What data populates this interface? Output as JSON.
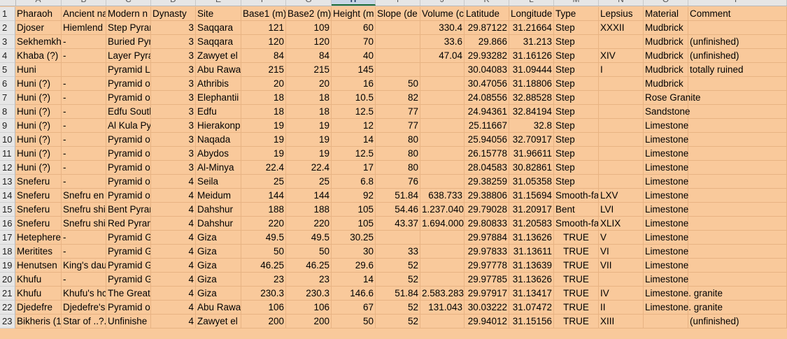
{
  "columns": [
    "A",
    "B",
    "C",
    "D",
    "E",
    "F",
    "G",
    "H",
    "I",
    "J",
    "K",
    "L",
    "M",
    "N",
    "O",
    "P",
    "Q"
  ],
  "selected_column": "H",
  "rows": [
    {
      "n": "1",
      "c": [
        "Pharaoh",
        "Ancient na",
        "Modern n",
        "Dynasty",
        "Site",
        "Base1 (m)",
        "Base2 (m)",
        "Height (m",
        "Slope (de",
        "Volume (c",
        "Latitude",
        "Longitude",
        "Type",
        "Lepsius",
        "Material",
        "Comment",
        ""
      ]
    },
    {
      "n": "2",
      "c": [
        "Djoser",
        "Hiemlend",
        "Step Pyran",
        "3",
        "Saqqara",
        "121",
        "109",
        "60",
        "",
        "330.4",
        "29.87122",
        "31.21664",
        "Step",
        "XXXII",
        "Mudbrick",
        "",
        ""
      ]
    },
    {
      "n": "3",
      "c": [
        "Sekhemkh",
        "-",
        "Buried Pyr",
        "3",
        "Saqqara",
        "120",
        "120",
        "70",
        "",
        "33.6",
        "29.866",
        "31.213",
        "Step",
        "",
        "Mudbrick",
        "(unfinished)",
        ""
      ]
    },
    {
      "n": "4",
      "c": [
        "Khaba (?)",
        "-",
        "Layer Pyra",
        "3",
        "Zawyet el",
        "84",
        "84",
        "40",
        "",
        "47.04",
        "29.93282",
        "31.16126",
        "Step",
        "XIV",
        "Mudbrick",
        "(unfinished)",
        ""
      ]
    },
    {
      "n": "5",
      "c": [
        "Huni",
        "",
        "Pyramid L",
        "3",
        "Abu Rawa",
        "215",
        "215",
        "145",
        "",
        "",
        "30.04083",
        "31.09444",
        "Step",
        "I",
        "Mudbrick",
        "totally ruined",
        ""
      ]
    },
    {
      "n": "6",
      "c": [
        "Huni (?)",
        "-",
        "Pyramid o",
        "3",
        "Athribis",
        "20",
        "20",
        "16",
        "50",
        "",
        "30.47056",
        "31.18806",
        "Step",
        "",
        "Mudbrick",
        "",
        ""
      ]
    },
    {
      "n": "7",
      "c": [
        "Huni (?)",
        "-",
        "Pyramid o",
        "3",
        "Elephantii",
        "18",
        "18",
        "10.5",
        "82",
        "",
        "24.08556",
        "32.88528",
        "Step",
        "",
        "Rose Granite",
        "",
        ""
      ]
    },
    {
      "n": "8",
      "c": [
        "Huni (?)",
        "-",
        "Edfu Soutl",
        "3",
        "Edfu",
        "18",
        "18",
        "12.5",
        "77",
        "",
        "24.94361",
        "32.84194",
        "Step",
        "",
        "Sandstone",
        "",
        ""
      ]
    },
    {
      "n": "9",
      "c": [
        "Huni (?)",
        "-",
        "Al Kula Py",
        "3",
        "Hierakonp",
        "19",
        "19",
        "12",
        "77",
        "",
        "25.11667",
        "32.8",
        "Step",
        "",
        "Limestone",
        "",
        ""
      ]
    },
    {
      "n": "10",
      "c": [
        "Huni (?)",
        "-",
        "Pyramid o",
        "3",
        "Naqada",
        "19",
        "19",
        "14",
        "80",
        "",
        "25.94056",
        "32.70917",
        "Step",
        "",
        "Limestone",
        "",
        ""
      ]
    },
    {
      "n": "11",
      "c": [
        "Huni (?)",
        "-",
        "Pyramid o",
        "3",
        "Abydos",
        "19",
        "19",
        "12.5",
        "80",
        "",
        "26.15778",
        "31.96611",
        "Step",
        "",
        "Limestone",
        "",
        ""
      ]
    },
    {
      "n": "12",
      "c": [
        "Huni (?)",
        "-",
        "Pyramid o",
        "3",
        "Al-Minya",
        "22.4",
        "22.4",
        "17",
        "80",
        "",
        "28.04583",
        "30.82861",
        "Step",
        "",
        "Limestone",
        "",
        ""
      ]
    },
    {
      "n": "13",
      "c": [
        "Sneferu",
        "-",
        "Pyramid o",
        "4",
        "Seila",
        "25",
        "25",
        "6.8",
        "76",
        "",
        "29.38259",
        "31.05358",
        "Step",
        "",
        "Limestone",
        "",
        ""
      ]
    },
    {
      "n": "14",
      "c": [
        "Sneferu",
        "Snefru en",
        "Pyramid o",
        "4",
        "Meidum",
        "144",
        "144",
        "92",
        "51.84",
        "638.733",
        "29.38806",
        "31.15694",
        "Smooth-fa",
        "LXV",
        "Limestone",
        "",
        ""
      ]
    },
    {
      "n": "15",
      "c": [
        "Sneferu",
        "Snefru shi",
        "Bent Pyrar",
        "4",
        "Dahshur",
        "188",
        "188",
        "105",
        "54.46",
        "1.237.040",
        "29.79028",
        "31.20917",
        "Bent",
        "LVI",
        "Limestone",
        "",
        ""
      ]
    },
    {
      "n": "16",
      "c": [
        "Sneferu",
        "Snefru shi",
        "Red Pyran",
        "4",
        "Dahshur",
        "220",
        "220",
        "105",
        "43.37",
        "1.694.000",
        "29.80833",
        "31.20583",
        "Smooth-fa",
        "XLIX",
        "Limestone",
        "",
        ""
      ]
    },
    {
      "n": "17",
      "c": [
        "Hetephere",
        "-",
        "Pyramid G",
        "4",
        "Giza",
        "49.5",
        "49.5",
        "30.25",
        "",
        "",
        "29.97884",
        "31.13626",
        "TRUE",
        "V",
        "Limestone",
        "",
        ""
      ]
    },
    {
      "n": "18",
      "c": [
        "Meritites",
        "-",
        "Pyramid G",
        "4",
        "Giza",
        "50",
        "50",
        "30",
        "33",
        "",
        "29.97833",
        "31.13611",
        "TRUE",
        "VI",
        "Limestone",
        "",
        ""
      ]
    },
    {
      "n": "19",
      "c": [
        "Henutsen",
        "King's dau",
        "Pyramid G",
        "4",
        "Giza",
        "46.25",
        "46.25",
        "29.6",
        "52",
        "",
        "29.97778",
        "31.13639",
        "TRUE",
        "VII",
        "Limestone",
        "",
        ""
      ]
    },
    {
      "n": "20",
      "c": [
        "Khufu",
        "-",
        "Pyramid G",
        "4",
        "Giza",
        "23",
        "23",
        "14",
        "52",
        "",
        "29.97785",
        "31.13626",
        "TRUE",
        "",
        "Limestone",
        "",
        ""
      ]
    },
    {
      "n": "21",
      "c": [
        "Khufu",
        "Khufu's hc",
        "The Great",
        "4",
        "Giza",
        "230.3",
        "230.3",
        "146.6",
        "51.84",
        "2.583.283",
        "29.97917",
        "31.13417",
        "TRUE",
        "IV",
        "Limestone. granite",
        "",
        ""
      ]
    },
    {
      "n": "22",
      "c": [
        "Djedefre",
        "Djedefre's",
        "Pyramid o",
        "4",
        "Abu Rawa",
        "106",
        "106",
        "67",
        "52",
        "131.043",
        "30.03222",
        "31.07472",
        "TRUE",
        "II",
        "Limestone. granite",
        "",
        ""
      ]
    },
    {
      "n": "23",
      "c": [
        "Bikheris (1",
        "Star of ..?.",
        "Unfinishe",
        "4",
        "Zawyet el",
        "200",
        "200",
        "50",
        "52",
        "",
        "29.94012",
        "31.15156",
        "TRUE",
        "XIII",
        "",
        "(unfinished)",
        ""
      ]
    }
  ]
}
